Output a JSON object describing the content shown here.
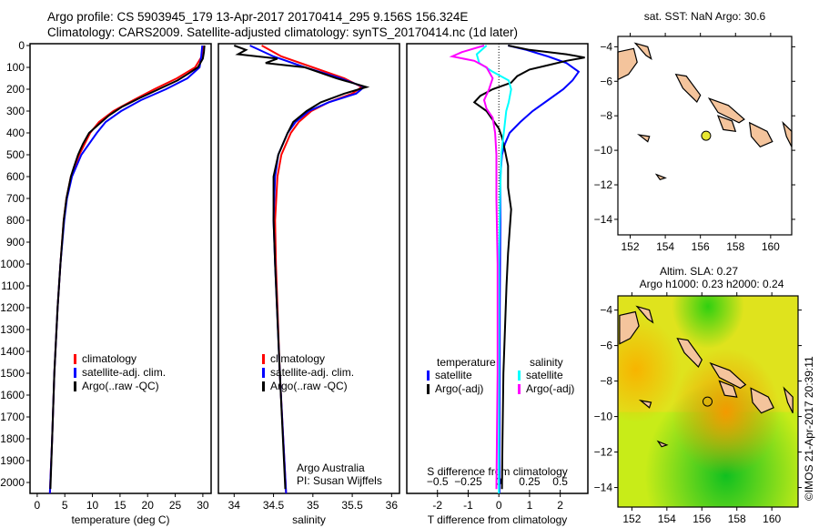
{
  "header": {
    "line1": "Argo profile: CS 5903945_179 13-Apr-2017 20170414_295 9.156S 156.324E",
    "line2": "Climatology: CARS2009. Satellite-adjusted climatology: synTS_20170414.nc (1d later)"
  },
  "colors": {
    "climatology": "#ff0000",
    "satellite": "#0000ff",
    "argo": "#000000",
    "s_satellite": "#00ffff",
    "s_argo": "#ff00ff",
    "land": "#f4c49c",
    "float_marker": "#e6e632"
  },
  "chart_data": [
    {
      "type": "line",
      "id": "temperature",
      "xlabel": "temperature (deg C)",
      "ylabel": "",
      "xlim": [
        -1.3,
        31.5
      ],
      "ylim": [
        2050,
        0
      ],
      "xticks": [
        0,
        5,
        10,
        15,
        20,
        25,
        30
      ],
      "yticks": [
        0,
        100,
        200,
        300,
        400,
        500,
        600,
        700,
        800,
        900,
        1000,
        1100,
        1200,
        1300,
        1400,
        1500,
        1600,
        1700,
        1800,
        1900,
        2000
      ],
      "legend": [
        "climatology",
        "satellite-adj. clim.",
        "Argo(..raw -QC)"
      ],
      "series": [
        {
          "name": "climatology",
          "color": "#ff0000",
          "depth": [
            0,
            50,
            100,
            150,
            200,
            250,
            300,
            350,
            400,
            500,
            600,
            700,
            800,
            1000,
            1200,
            1500,
            1800,
            2050
          ],
          "values": [
            30,
            29.8,
            28.6,
            25.3,
            21.2,
            17.4,
            13.8,
            11.2,
            9.6,
            7.6,
            6.1,
            5.3,
            4.8,
            4.2,
            3.7,
            3.1,
            2.7,
            2.3
          ]
        },
        {
          "name": "satellite-adj. clim.",
          "color": "#0000ff",
          "depth": [
            0,
            50,
            100,
            150,
            200,
            250,
            300,
            350,
            400,
            500,
            600,
            700,
            800,
            1000,
            1200,
            1500,
            1800,
            2050
          ],
          "values": [
            29.9,
            29.7,
            29.4,
            27.2,
            23.3,
            18.8,
            15.2,
            12.4,
            10.8,
            8.0,
            6.3,
            5.4,
            4.9,
            4.2,
            3.7,
            3.1,
            2.7,
            2.3
          ]
        },
        {
          "name": "Argo(..raw -QC)",
          "color": "#000000",
          "depth": [
            0,
            30,
            60,
            100,
            130,
            160,
            200,
            240,
            280,
            320,
            360,
            400,
            450,
            500,
            560,
            600,
            700,
            800,
            1000,
            1200,
            1500,
            1800,
            2030
          ],
          "values": [
            30.3,
            30.2,
            30.0,
            29.1,
            27.3,
            25.4,
            22.0,
            18.6,
            15.4,
            13.0,
            11.2,
            9.4,
            8.3,
            7.4,
            6.6,
            6.1,
            5.3,
            4.8,
            4.2,
            3.7,
            3.1,
            2.7,
            2.4
          ]
        }
      ]
    },
    {
      "type": "line",
      "id": "salinity",
      "xlabel": "salinity",
      "xlim": [
        33.8,
        36.1
      ],
      "ylim": [
        2050,
        0
      ],
      "xticks": [
        34,
        34.5,
        35,
        35.5,
        36
      ],
      "legend": [
        "climatology",
        "satellite-adj. clim.",
        "Argo(..raw -QC)"
      ],
      "annotation": [
        "Argo Australia",
        "PI: Susan Wijffels"
      ],
      "series": [
        {
          "name": "climatology",
          "color": "#ff0000",
          "depth": [
            0,
            50,
            100,
            150,
            190,
            220,
            260,
            300,
            350,
            400,
            500,
            600,
            800,
            1000,
            1500,
            2050
          ],
          "values": [
            34.35,
            34.6,
            35.0,
            35.4,
            35.62,
            35.5,
            35.2,
            34.98,
            34.82,
            34.72,
            34.6,
            34.55,
            34.52,
            34.53,
            34.58,
            34.66
          ]
        },
        {
          "name": "satellite-adj. clim.",
          "color": "#0000ff",
          "depth": [
            0,
            50,
            100,
            150,
            190,
            220,
            260,
            300,
            350,
            400,
            500,
            600,
            800,
            1000,
            1500,
            2050
          ],
          "values": [
            34.2,
            34.5,
            34.9,
            35.35,
            35.65,
            35.55,
            35.2,
            34.95,
            34.78,
            34.68,
            34.56,
            34.52,
            34.5,
            34.52,
            34.58,
            34.66
          ]
        },
        {
          "name": "Argo(..raw -QC)",
          "color": "#000000",
          "depth": [
            0,
            20,
            40,
            60,
            80,
            100,
            150,
            190,
            220,
            260,
            300,
            350,
            400,
            500,
            600,
            800,
            1000,
            1500,
            2030
          ],
          "values": [
            34.0,
            34.15,
            34.05,
            34.55,
            34.4,
            34.9,
            35.3,
            35.68,
            35.4,
            35.1,
            34.92,
            34.75,
            34.68,
            34.56,
            34.5,
            34.5,
            34.52,
            34.58,
            34.65
          ]
        }
      ]
    },
    {
      "type": "line",
      "id": "difference",
      "xlabel": "T difference from climatology",
      "x2label": "S difference from climatology",
      "xlim": [
        -3.0,
        2.9
      ],
      "x2lim": [
        -0.75,
        0.725
      ],
      "ylim": [
        2050,
        0
      ],
      "xticks": [
        -2,
        -1,
        0,
        1,
        2
      ],
      "x2ticks": [
        "-0.5",
        "-0.25",
        "0",
        "0.25",
        "0.5"
      ],
      "legend_t": {
        "title": "temperature",
        "items": [
          "satellite",
          "Argo(-adj)"
        ]
      },
      "legend_s": {
        "title": "salinity",
        "items": [
          "satellite",
          "Argo(-adj)"
        ]
      },
      "series": [
        {
          "name": "T satellite",
          "axis": "T",
          "color": "#0000ff",
          "depth": [
            0,
            20,
            50,
            80,
            120,
            160,
            200,
            250,
            300,
            350,
            400,
            450,
            500,
            600,
            800,
            1200,
            2050
          ],
          "values": [
            0.3,
            0.9,
            1.6,
            2.2,
            2.6,
            2.4,
            2.1,
            1.6,
            1.1,
            0.7,
            0.35,
            0.2,
            0.1,
            0.05,
            0.05,
            0.03,
            0.02
          ]
        },
        {
          "name": "T Argo(-adj)",
          "axis": "T",
          "color": "#000000",
          "depth": [
            0,
            20,
            40,
            55,
            70,
            90,
            110,
            140,
            170,
            200,
            230,
            260,
            300,
            340,
            380,
            420,
            480,
            550,
            650,
            750,
            850,
            950,
            1100,
            1300,
            1500,
            1800,
            2030
          ],
          "values": [
            0.3,
            1.0,
            2.2,
            2.8,
            2.2,
            1.6,
            1.0,
            0.6,
            0.4,
            -0.2,
            -0.6,
            -0.8,
            -0.4,
            -0.2,
            0.0,
            0.1,
            0.2,
            0.3,
            0.3,
            0.4,
            0.35,
            0.3,
            0.25,
            0.2,
            0.15,
            0.12,
            0.1
          ]
        },
        {
          "name": "S satellite",
          "axis": "S",
          "color": "#00ffff",
          "depth": [
            0,
            40,
            80,
            120,
            160,
            200,
            260,
            300,
            400,
            500,
            700,
            1000,
            1500,
            2050
          ],
          "values": [
            -0.1,
            -0.18,
            -0.16,
            -0.05,
            0.08,
            0.1,
            0.08,
            0.06,
            0.04,
            0.02,
            0.01,
            0.0,
            0.0,
            0.0
          ]
        },
        {
          "name": "S Argo(-adj)",
          "axis": "S",
          "color": "#ff00ff",
          "depth": [
            0,
            30,
            50,
            70,
            100,
            150,
            200,
            250,
            290,
            330,
            400,
            500,
            700,
            1000,
            1500,
            2030
          ],
          "values": [
            -0.12,
            -0.3,
            -0.38,
            -0.2,
            -0.1,
            -0.05,
            -0.08,
            -0.12,
            -0.1,
            -0.05,
            -0.03,
            -0.02,
            -0.02,
            -0.01,
            -0.01,
            -0.02
          ]
        }
      ]
    },
    {
      "type": "map",
      "id": "sst-map",
      "title": "sat. SST: NaN Argo: 30.6",
      "xlim": [
        151.3,
        161.2
      ],
      "ylim": [
        -14.9,
        -3.4
      ],
      "xticks": [
        152,
        154,
        156,
        158,
        160
      ],
      "yticks": [
        -4,
        -6,
        -8,
        -10,
        -12,
        -14
      ],
      "float": {
        "lon": 156.324,
        "lat": -9.156
      }
    },
    {
      "type": "map",
      "id": "sla-map",
      "title": "Altim. SLA: 0.27",
      "subtitle": "Argo h1000: 0.23 h2000: 0.24",
      "xlim": [
        151.2,
        161.5
      ],
      "ylim": [
        -15.1,
        -3.2
      ],
      "xticks": [
        152,
        154,
        156,
        158,
        160
      ],
      "yticks": [
        -4,
        -6,
        -8,
        -10,
        -12,
        -14
      ],
      "float": {
        "lon": 156.324,
        "lat": -9.156
      },
      "credit": "©IMOS 21-Apr-2017 20:39:11"
    }
  ]
}
